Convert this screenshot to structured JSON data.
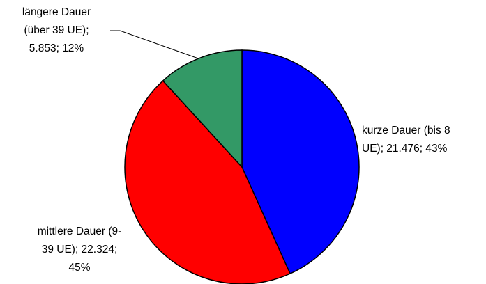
{
  "chart_data": {
    "type": "pie",
    "values": [
      21476,
      22324,
      5853
    ],
    "value_labels": [
      [
        "kurze Dauer (bis 8",
        "UE); 21.476; 43%"
      ],
      [
        "mittlere Dauer (9-",
        "39 UE); 22.324;",
        "45%"
      ],
      [
        "längere Dauer",
        "(über 39 UE);",
        "5.853; 12%"
      ]
    ],
    "colors": [
      "#0000ff",
      "#ff0000",
      "#339966"
    ]
  }
}
